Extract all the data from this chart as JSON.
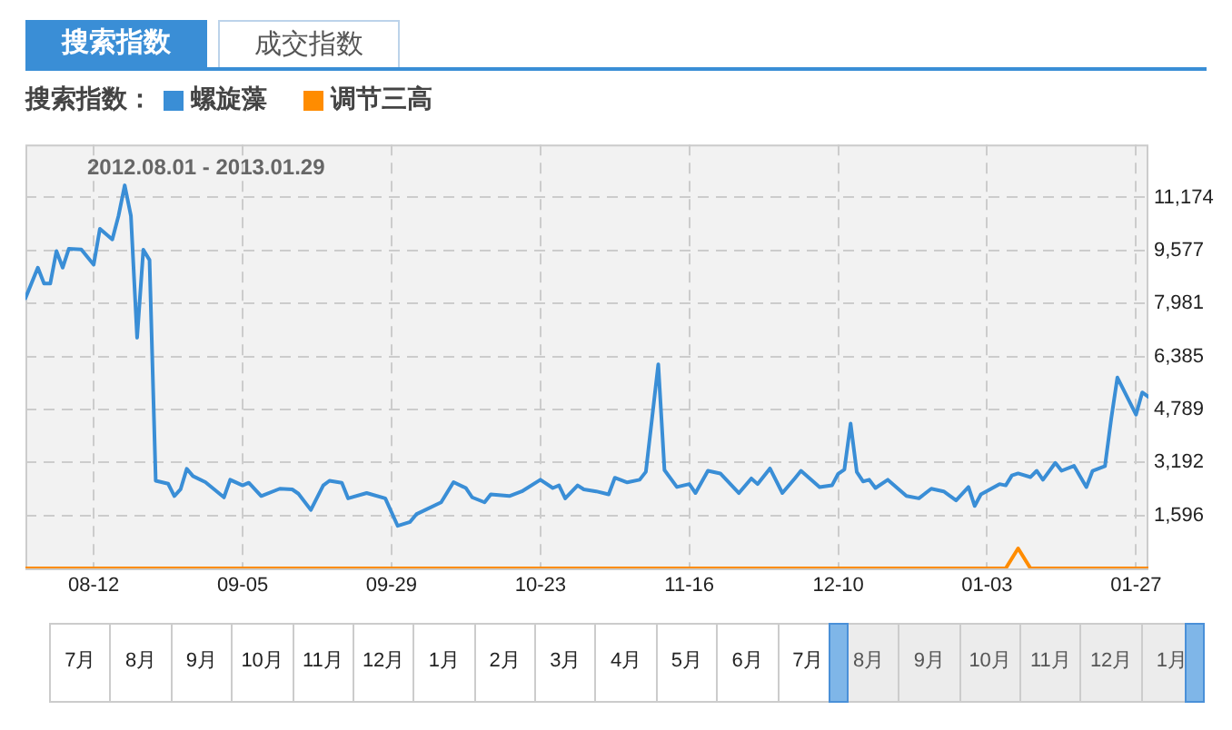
{
  "chart_data": {
    "type": "line",
    "subtitle": "2012.08.01 - 2013.01.29",
    "legend_title": "搜索指数：",
    "annotations": [
      "搜索指数",
      "成交指数",
      "7月",
      "8月",
      "9月",
      "10月",
      "11月",
      "12月",
      "1月",
      "2月",
      "3月",
      "4月",
      "5月",
      "6月",
      "7月",
      "8月",
      "9月",
      "10月",
      "11月",
      "12月",
      "1月"
    ],
    "xlim": [
      "2012-08-01",
      "2013-01-29"
    ],
    "xticks": [
      {
        "value": "2012-08-12",
        "label": "08-12"
      },
      {
        "value": "2012-09-05",
        "label": "09-05"
      },
      {
        "value": "2012-09-29",
        "label": "09-29"
      },
      {
        "value": "2012-10-23",
        "label": "10-23"
      },
      {
        "value": "2012-11-16",
        "label": "11-16"
      },
      {
        "value": "2012-12-10",
        "label": "12-10"
      },
      {
        "value": "2013-01-03",
        "label": "01-03"
      },
      {
        "value": "2013-01-27",
        "label": "01-27"
      }
    ],
    "ylim": [
      0,
      12768
    ],
    "yticks": [
      {
        "value": 1596,
        "label": "1,596"
      },
      {
        "value": 3192,
        "label": "3,192"
      },
      {
        "value": 4789,
        "label": "4,789"
      },
      {
        "value": 6385,
        "label": "6,385"
      },
      {
        "value": 7981,
        "label": "7,981"
      },
      {
        "value": 9577,
        "label": "9,577"
      },
      {
        "value": 11174,
        "label": "11,174"
      }
    ],
    "grid": true,
    "legend": "top left",
    "marker": "none",
    "line_style": "solid",
    "series": [
      {
        "name": "螺旋藻",
        "color": "#3a8ed6",
        "x": [
          "2012-08-01",
          "2012-08-03",
          "2012-08-04",
          "2012-08-05",
          "2012-08-06",
          "2012-08-07",
          "2012-08-08",
          "2012-08-10",
          "2012-08-12",
          "2012-08-13",
          "2012-08-15",
          "2012-08-16",
          "2012-08-17",
          "2012-08-18",
          "2012-08-19",
          "2012-08-20",
          "2012-08-21",
          "2012-08-22",
          "2012-08-24",
          "2012-08-25",
          "2012-08-26",
          "2012-08-27",
          "2012-08-28",
          "2012-08-30",
          "2012-09-02",
          "2012-09-03",
          "2012-09-05",
          "2012-09-06",
          "2012-09-08",
          "2012-09-11",
          "2012-09-13",
          "2012-09-14",
          "2012-09-16",
          "2012-09-18",
          "2012-09-19",
          "2012-09-21",
          "2012-09-22",
          "2012-09-25",
          "2012-09-28",
          "2012-09-30",
          "2012-10-02",
          "2012-10-03",
          "2012-10-07",
          "2012-10-09",
          "2012-10-11",
          "2012-10-12",
          "2012-10-14",
          "2012-10-15",
          "2012-10-18",
          "2012-10-20",
          "2012-10-23",
          "2012-10-25",
          "2012-10-26",
          "2012-10-27",
          "2012-10-29",
          "2012-10-30",
          "2012-11-01",
          "2012-11-03",
          "2012-11-04",
          "2012-11-06",
          "2012-11-08",
          "2012-11-09",
          "2012-11-11",
          "2012-11-12",
          "2012-11-14",
          "2012-11-16",
          "2012-11-17",
          "2012-11-19",
          "2012-11-21",
          "2012-11-24",
          "2012-11-26",
          "2012-11-27",
          "2012-11-29",
          "2012-12-01",
          "2012-12-03",
          "2012-12-04",
          "2012-12-07",
          "2012-12-09",
          "2012-12-10",
          "2012-12-11",
          "2012-12-12",
          "2012-12-13",
          "2012-12-14",
          "2012-12-15",
          "2012-12-16",
          "2012-12-18",
          "2012-12-21",
          "2012-12-23",
          "2012-12-25",
          "2012-12-27",
          "2012-12-29",
          "2012-12-31",
          "2013-01-01",
          "2013-01-02",
          "2013-01-05",
          "2013-01-06",
          "2013-01-07",
          "2013-01-08",
          "2013-01-10",
          "2013-01-11",
          "2013-01-12",
          "2013-01-14",
          "2013-01-15",
          "2013-01-17",
          "2013-01-19",
          "2013-01-20",
          "2013-01-22",
          "2013-01-23",
          "2013-01-24",
          "2013-01-27",
          "2013-01-28",
          "2013-01-29"
        ],
        "values": [
          8140,
          9060,
          8580,
          8580,
          9560,
          9060,
          9630,
          9610,
          9150,
          10230,
          9910,
          10620,
          11540,
          10620,
          6950,
          9600,
          9290,
          2640,
          2550,
          2180,
          2380,
          3000,
          2780,
          2600,
          2140,
          2670,
          2500,
          2580,
          2180,
          2400,
          2380,
          2250,
          1760,
          2500,
          2640,
          2580,
          2110,
          2270,
          2110,
          1280,
          1400,
          1630,
          1990,
          2600,
          2420,
          2140,
          1990,
          2230,
          2180,
          2320,
          2670,
          2420,
          2500,
          2110,
          2500,
          2380,
          2320,
          2230,
          2730,
          2590,
          2670,
          2910,
          6150,
          2960,
          2450,
          2540,
          2270,
          2940,
          2860,
          2270,
          2710,
          2540,
          3010,
          2270,
          2710,
          2940,
          2450,
          2500,
          2850,
          2980,
          4360,
          2900,
          2620,
          2670,
          2420,
          2670,
          2180,
          2110,
          2400,
          2320,
          2050,
          2450,
          1880,
          2230,
          2540,
          2500,
          2800,
          2860,
          2750,
          2940,
          2670,
          3180,
          2940,
          3090,
          2450,
          2940,
          3080,
          4500,
          5750,
          4630,
          5300,
          5170
        ]
      },
      {
        "name": "调节三高",
        "color": "#ff8c00",
        "x": [
          "2012-08-01",
          "2013-01-06",
          "2013-01-08",
          "2013-01-10",
          "2013-01-29"
        ],
        "values": [
          0,
          0,
          600,
          0,
          0
        ]
      }
    ]
  }
}
